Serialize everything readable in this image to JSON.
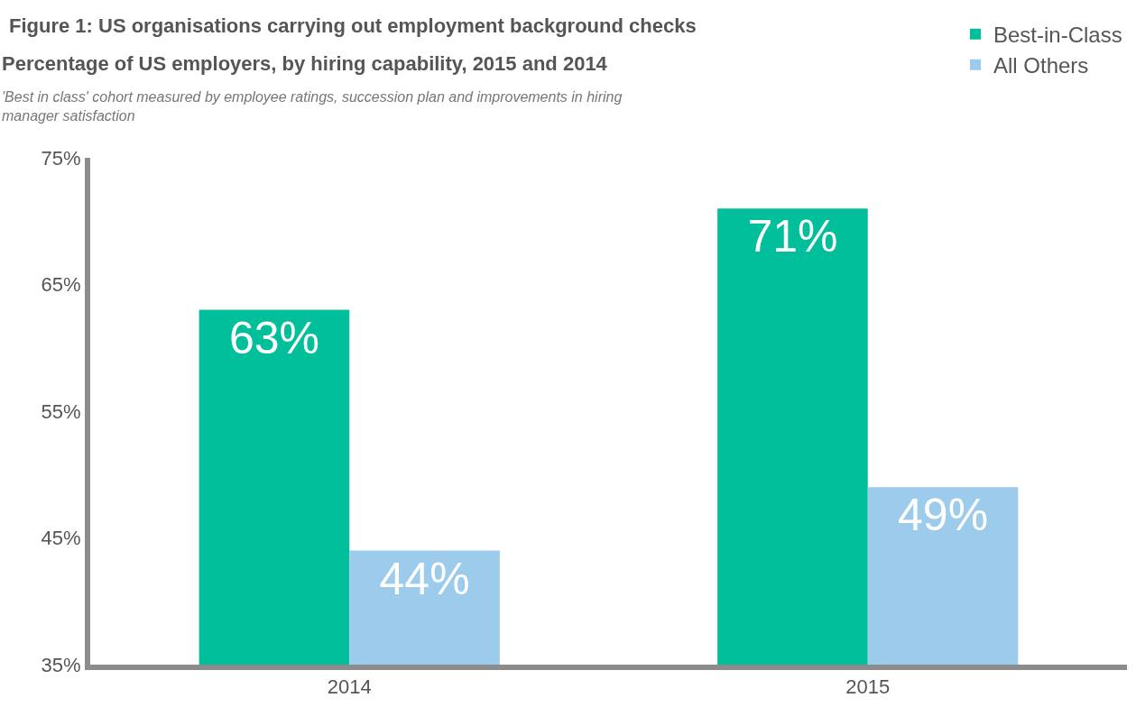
{
  "chart_data": {
    "type": "bar",
    "title": "Figure 1: US organisations carrying out employment background checks",
    "subtitle": "Percentage of US employers, by hiring capability, 2015 and 2014",
    "annotations": [
      "'Best in class' cohort measured by employee ratings, succession plan and improvements in hiring manager satisfaction"
    ],
    "categories": [
      "2014",
      "2015"
    ],
    "series": [
      {
        "name": "Best-in-Class",
        "color": "#00bf9a",
        "values": [
          63,
          71
        ],
        "value_labels": [
          "63%",
          "71%"
        ]
      },
      {
        "name": "All Others",
        "color": "#9dcbeb",
        "values": [
          44,
          49
        ],
        "value_labels": [
          "44%",
          "49%"
        ]
      }
    ],
    "ylim": [
      35,
      75
    ],
    "yticks": [
      {
        "value": 35,
        "label": "35%"
      },
      {
        "value": 45,
        "label": "45%"
      },
      {
        "value": 55,
        "label": "55%"
      },
      {
        "value": 65,
        "label": "65%"
      },
      {
        "value": 75,
        "label": "75%"
      }
    ],
    "legend": "top right"
  }
}
